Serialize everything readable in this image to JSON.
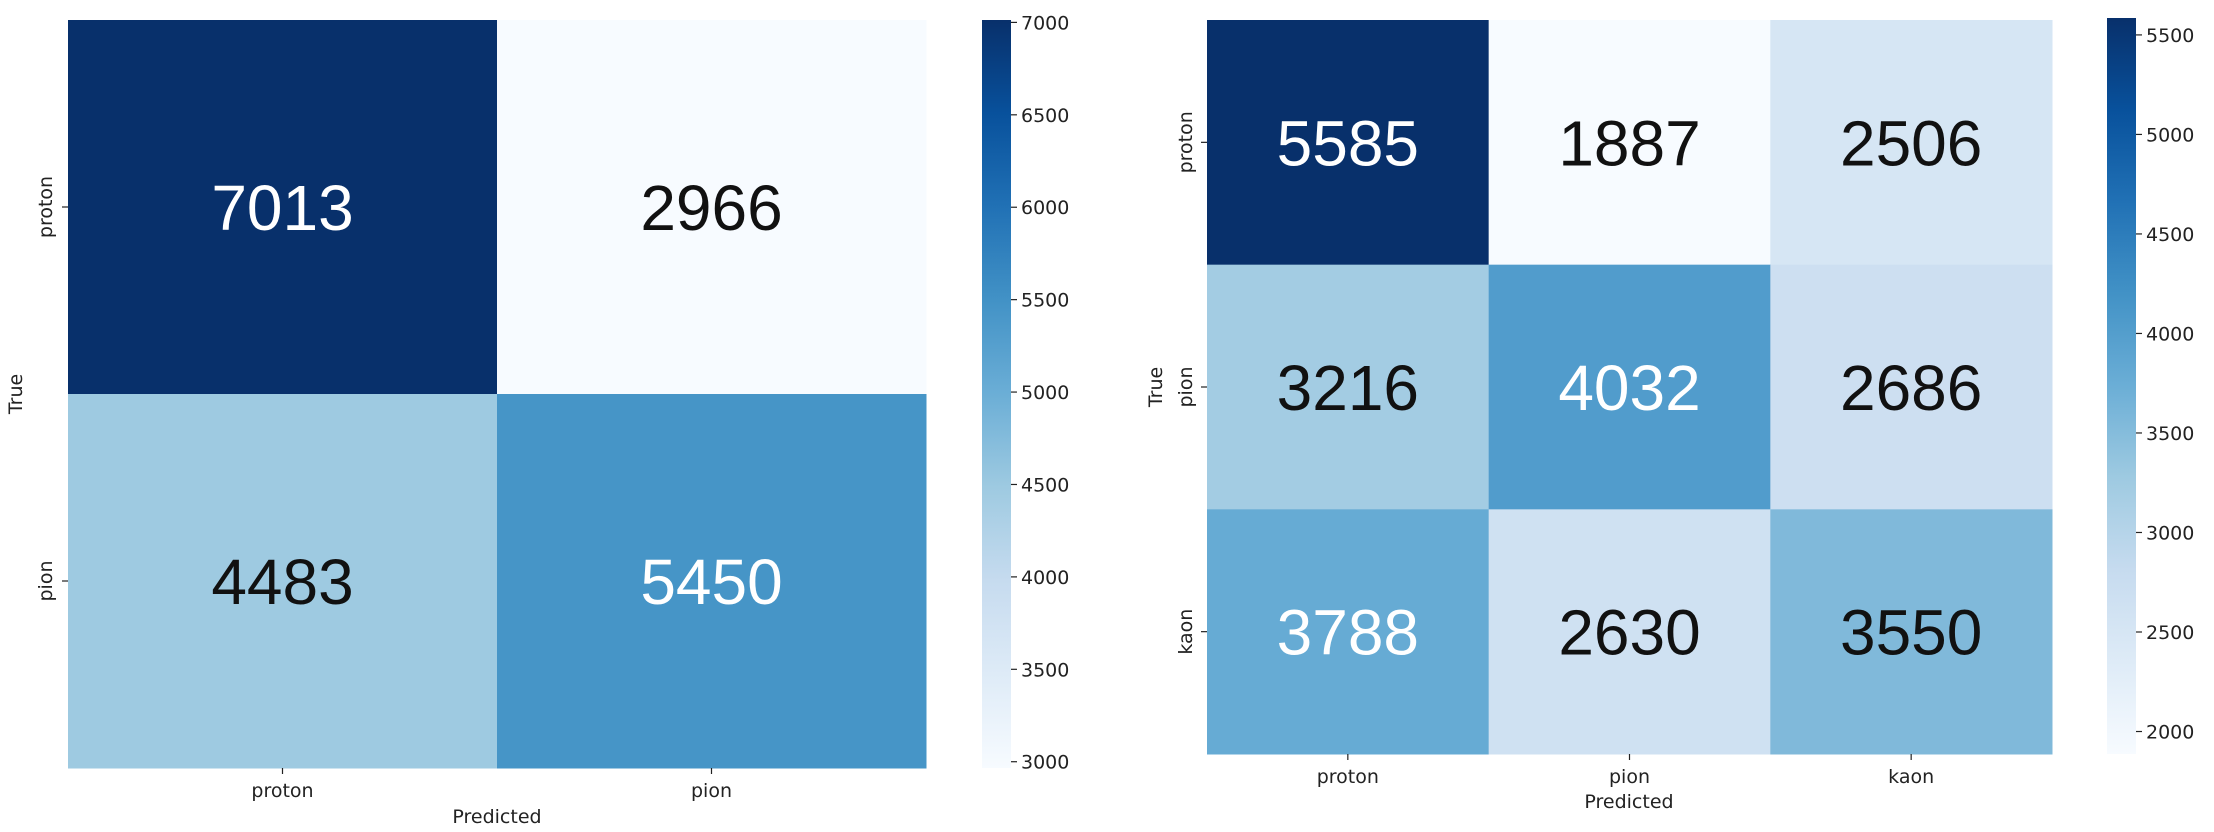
{
  "chart_data": [
    {
      "type": "heatmap",
      "title": "",
      "xlabel": "Predicted",
      "ylabel": "True",
      "x_categories": [
        "proton",
        "pion"
      ],
      "y_categories": [
        "proton",
        "pion"
      ],
      "values": [
        [
          7013,
          2966
        ],
        [
          4483,
          5450
        ]
      ],
      "colormap": "Blues",
      "colorbar": {
        "min": 2966,
        "max": 7013,
        "ticks": [
          "3000",
          "3500",
          "4000",
          "4500",
          "5000",
          "5500",
          "6000",
          "6500",
          "7000"
        ]
      }
    },
    {
      "type": "heatmap",
      "title": "",
      "xlabel": "Predicted",
      "ylabel": "True",
      "x_categories": [
        "proton",
        "pion",
        "kaon"
      ],
      "y_categories": [
        "proton",
        "pion",
        "kaon"
      ],
      "values": [
        [
          5585,
          1887,
          2506
        ],
        [
          3216,
          4032,
          2686
        ],
        [
          3788,
          2630,
          3550
        ]
      ],
      "colormap": "Blues",
      "colorbar": {
        "min": 1887,
        "max": 5585,
        "ticks": [
          "2000",
          "2500",
          "3000",
          "3500",
          "4000",
          "4500",
          "5000",
          "5500"
        ]
      }
    }
  ]
}
